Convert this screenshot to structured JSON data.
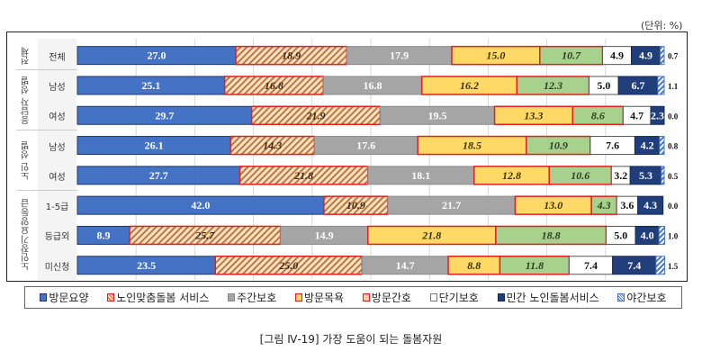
{
  "unit_label": "(단위: %)",
  "caption": "[그림 Ⅳ-19] 가장 도움이 되는 돌봄자원",
  "chart_data": {
    "type": "bar",
    "orientation": "horizontal",
    "stacked": true,
    "xlim": [
      0,
      100
    ],
    "grid": true,
    "legend_position": "bottom",
    "groups": [
      {
        "label": "전체",
        "categories": [
          "전체"
        ]
      },
      {
        "label": "응답자 성별",
        "categories": [
          "남성",
          "여성"
        ]
      },
      {
        "label": "노인 성별",
        "categories": [
          "남성",
          "여성"
        ]
      },
      {
        "label": "노인장기요양등급",
        "categories": [
          "1-5급",
          "등급외",
          "미신청"
        ]
      }
    ],
    "categories": [
      "전체",
      "남성",
      "여성",
      "남성",
      "여성",
      "1-5급",
      "등급외",
      "미신청"
    ],
    "series": [
      {
        "name": "방문요양",
        "color": "#4472c4",
        "values": [
          27.0,
          25.1,
          29.7,
          26.1,
          27.7,
          42.0,
          8.9,
          23.5
        ]
      },
      {
        "name": "노인맞춤돌봄 서비스",
        "color": "#f8cba0",
        "pattern": "hatch",
        "values": [
          18.9,
          16.8,
          21.9,
          14.3,
          21.8,
          10.9,
          25.7,
          25.0
        ]
      },
      {
        "name": "주간보호",
        "color": "#a5a5a5",
        "values": [
          17.9,
          16.8,
          19.5,
          17.6,
          18.1,
          21.7,
          14.9,
          14.7
        ]
      },
      {
        "name": "방문목욕",
        "color": "#ffd966",
        "values": [
          15.0,
          16.2,
          13.3,
          18.5,
          12.8,
          13.0,
          21.8,
          8.8
        ]
      },
      {
        "name": "방문간호",
        "color": "#a9d18e",
        "values": [
          10.7,
          12.3,
          8.6,
          10.9,
          10.6,
          4.3,
          18.8,
          11.8
        ]
      },
      {
        "name": "단기보호",
        "color": "#ffffff",
        "values": [
          4.9,
          5.0,
          4.7,
          7.6,
          3.2,
          3.6,
          5.0,
          7.4
        ]
      },
      {
        "name": "민간 노인돌봄서비스",
        "color": "#203f7a",
        "values": [
          4.9,
          6.7,
          2.3,
          4.2,
          5.3,
          4.3,
          4.0,
          7.4
        ]
      },
      {
        "name": "야간보호",
        "color": "#8fb0e0",
        "pattern": "hatch",
        "values": [
          0.7,
          1.1,
          0.0,
          0.8,
          0.5,
          0.0,
          1.0,
          1.5
        ]
      }
    ]
  }
}
